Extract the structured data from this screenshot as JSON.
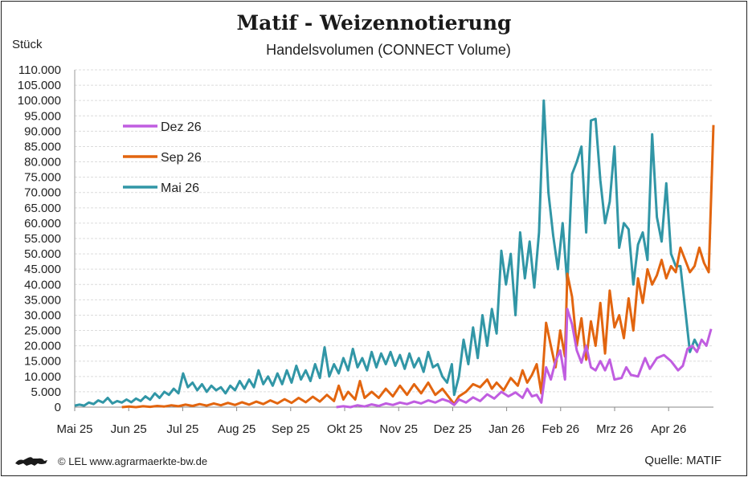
{
  "chart_data": {
    "type": "line",
    "title": "Matif - Weizennotierung",
    "subtitle": "Handelsvolumen (CONNECT Volume)",
    "ylabel": "Stück",
    "ylim": [
      0,
      110000
    ],
    "yticks": [
      0,
      5000,
      10000,
      15000,
      20000,
      25000,
      30000,
      35000,
      40000,
      45000,
      50000,
      55000,
      60000,
      65000,
      70000,
      75000,
      80000,
      85000,
      90000,
      95000,
      100000,
      105000,
      110000
    ],
    "ytick_labels": [
      "0",
      "5.000",
      "10.000",
      "15.000",
      "20.000",
      "25.000",
      "30.000",
      "35.000",
      "40.000",
      "45.000",
      "50.000",
      "55.000",
      "60.000",
      "65.000",
      "70.000",
      "75.000",
      "80.000",
      "85.000",
      "90.000",
      "95.000",
      "100.000",
      "105.000",
      "110.000"
    ],
    "xtick_labels": [
      "Mai 25",
      "Jun 25",
      "Jul 25",
      "Aug 25",
      "Sep 25",
      "Okt 25",
      "Nov 25",
      "Dez 25",
      "Jan 26",
      "Feb 26",
      "Mrz 26",
      "Apr 26"
    ],
    "xtick_months": [
      0,
      1,
      2,
      3,
      4,
      5,
      6,
      7,
      8,
      9,
      10,
      11
    ],
    "xlim_months": [
      0,
      12.05
    ],
    "grid": true,
    "legend_position": "top-left",
    "series": [
      {
        "name": "Dez 26",
        "color": "#c05de0",
        "points": [
          [
            5.55,
            0
          ],
          [
            5.7,
            300
          ],
          [
            5.85,
            0
          ],
          [
            6.0,
            600
          ],
          [
            6.15,
            200
          ],
          [
            6.3,
            900
          ],
          [
            6.45,
            400
          ],
          [
            6.6,
            1200
          ],
          [
            6.75,
            700
          ],
          [
            6.9,
            1500
          ],
          [
            7.05,
            1000
          ],
          [
            7.2,
            1800
          ],
          [
            7.35,
            1200
          ],
          [
            7.5,
            2200
          ],
          [
            7.65,
            1500
          ],
          [
            7.8,
            2600
          ],
          [
            7.95,
            1800
          ],
          [
            8.05,
            700
          ],
          [
            8.15,
            2500
          ],
          [
            8.3,
            1500
          ],
          [
            8.45,
            3200
          ],
          [
            8.6,
            2000
          ],
          [
            8.75,
            4200
          ],
          [
            8.9,
            2800
          ],
          [
            9.05,
            5000
          ],
          [
            9.2,
            3500
          ],
          [
            9.35,
            4800
          ],
          [
            9.5,
            3000
          ],
          [
            9.6,
            6000
          ],
          [
            9.7,
            3500
          ],
          [
            9.8,
            4000
          ],
          [
            9.9,
            1500
          ],
          [
            10.0,
            13000
          ],
          [
            10.1,
            9000
          ],
          [
            10.2,
            15000
          ],
          [
            10.3,
            18500
          ],
          [
            10.4,
            9000
          ],
          [
            10.45,
            32000
          ],
          [
            10.55,
            27000
          ],
          [
            10.65,
            18500
          ],
          [
            10.75,
            14500
          ],
          [
            10.85,
            20000
          ],
          [
            10.95,
            13000
          ],
          [
            11.05,
            12000
          ],
          [
            11.15,
            15000
          ],
          [
            11.25,
            12000
          ],
          [
            11.35,
            15500
          ],
          [
            11.45,
            9000
          ],
          [
            11.6,
            9500
          ],
          [
            11.7,
            13000
          ],
          [
            11.8,
            10500
          ],
          [
            11.95,
            10000
          ],
          [
            12.1,
            16000
          ],
          [
            12.2,
            12500
          ],
          [
            12.35,
            16000
          ],
          [
            12.5,
            17000
          ],
          [
            12.65,
            15000
          ],
          [
            12.8,
            12000
          ],
          [
            12.9,
            13500
          ],
          [
            13.0,
            19000
          ],
          [
            13.1,
            20000
          ],
          [
            13.2,
            18000
          ],
          [
            13.3,
            22000
          ],
          [
            13.4,
            20000
          ],
          [
            13.5,
            25500
          ]
        ]
      },
      {
        "name": "Sep 26",
        "color": "#e2650f",
        "points": [
          [
            1.0,
            0
          ],
          [
            1.15,
            200
          ],
          [
            1.3,
            0
          ],
          [
            1.45,
            300
          ],
          [
            1.6,
            100
          ],
          [
            1.75,
            400
          ],
          [
            1.9,
            200
          ],
          [
            2.05,
            600
          ],
          [
            2.2,
            300
          ],
          [
            2.35,
            800
          ],
          [
            2.5,
            400
          ],
          [
            2.65,
            1000
          ],
          [
            2.8,
            500
          ],
          [
            2.95,
            1200
          ],
          [
            3.1,
            600
          ],
          [
            3.25,
            1400
          ],
          [
            3.4,
            700
          ],
          [
            3.55,
            1600
          ],
          [
            3.7,
            800
          ],
          [
            3.85,
            1800
          ],
          [
            4.0,
            1000
          ],
          [
            4.15,
            2200
          ],
          [
            4.3,
            1200
          ],
          [
            4.45,
            2600
          ],
          [
            4.6,
            1400
          ],
          [
            4.75,
            3000
          ],
          [
            4.9,
            1600
          ],
          [
            5.05,
            3400
          ],
          [
            5.2,
            1800
          ],
          [
            5.35,
            4000
          ],
          [
            5.5,
            2000
          ],
          [
            5.6,
            7000
          ],
          [
            5.7,
            2500
          ],
          [
            5.8,
            5000
          ],
          [
            5.95,
            2500
          ],
          [
            6.05,
            8500
          ],
          [
            6.15,
            3000
          ],
          [
            6.3,
            5000
          ],
          [
            6.45,
            3000
          ],
          [
            6.6,
            6000
          ],
          [
            6.75,
            3500
          ],
          [
            6.9,
            7000
          ],
          [
            7.05,
            4000
          ],
          [
            7.2,
            7500
          ],
          [
            7.35,
            4500
          ],
          [
            7.5,
            8000
          ],
          [
            7.65,
            4000
          ],
          [
            7.8,
            6000
          ],
          [
            7.95,
            3000
          ],
          [
            8.05,
            1000
          ],
          [
            8.15,
            3500
          ],
          [
            8.3,
            5000
          ],
          [
            8.45,
            7500
          ],
          [
            8.6,
            6500
          ],
          [
            8.75,
            9000
          ],
          [
            8.85,
            6000
          ],
          [
            8.95,
            8000
          ],
          [
            9.1,
            5500
          ],
          [
            9.25,
            9500
          ],
          [
            9.4,
            7000
          ],
          [
            9.5,
            12000
          ],
          [
            9.6,
            8000
          ],
          [
            9.7,
            10500
          ],
          [
            9.8,
            14000
          ],
          [
            9.9,
            4500
          ],
          [
            10.0,
            27500
          ],
          [
            10.1,
            20000
          ],
          [
            10.2,
            13000
          ],
          [
            10.3,
            25000
          ],
          [
            10.4,
            16500
          ],
          [
            10.45,
            43500
          ],
          [
            10.55,
            36000
          ],
          [
            10.65,
            20000
          ],
          [
            10.75,
            29000
          ],
          [
            10.85,
            15500
          ],
          [
            10.95,
            28000
          ],
          [
            11.05,
            20000
          ],
          [
            11.15,
            34000
          ],
          [
            11.25,
            17500
          ],
          [
            11.35,
            38000
          ],
          [
            11.45,
            26000
          ],
          [
            11.55,
            30000
          ],
          [
            11.65,
            22500
          ],
          [
            11.75,
            35500
          ],
          [
            11.85,
            25000
          ],
          [
            11.95,
            42000
          ],
          [
            12.05,
            34000
          ],
          [
            12.15,
            45000
          ],
          [
            12.25,
            40000
          ],
          [
            12.35,
            43000
          ],
          [
            12.45,
            48000
          ],
          [
            12.55,
            42000
          ],
          [
            12.65,
            46000
          ],
          [
            12.75,
            44000
          ],
          [
            12.85,
            52000
          ],
          [
            12.95,
            48000
          ],
          [
            13.05,
            44000
          ],
          [
            13.15,
            46000
          ],
          [
            13.25,
            52000
          ],
          [
            13.35,
            47000
          ],
          [
            13.45,
            44000
          ],
          [
            13.55,
            92000
          ]
        ]
      },
      {
        "name": "Mai 26",
        "color": "#3196a6",
        "points": [
          [
            0.0,
            500
          ],
          [
            0.1,
            800
          ],
          [
            0.2,
            500
          ],
          [
            0.3,
            1500
          ],
          [
            0.4,
            1000
          ],
          [
            0.5,
            2200
          ],
          [
            0.6,
            1500
          ],
          [
            0.7,
            3000
          ],
          [
            0.8,
            1200
          ],
          [
            0.9,
            2000
          ],
          [
            1.0,
            1500
          ],
          [
            1.1,
            2500
          ],
          [
            1.2,
            1600
          ],
          [
            1.3,
            2800
          ],
          [
            1.4,
            2000
          ],
          [
            1.5,
            3500
          ],
          [
            1.6,
            2400
          ],
          [
            1.7,
            4500
          ],
          [
            1.8,
            3000
          ],
          [
            1.9,
            5000
          ],
          [
            2.0,
            4000
          ],
          [
            2.1,
            6000
          ],
          [
            2.2,
            4500
          ],
          [
            2.3,
            11000
          ],
          [
            2.4,
            6500
          ],
          [
            2.5,
            8000
          ],
          [
            2.6,
            5500
          ],
          [
            2.7,
            7500
          ],
          [
            2.8,
            5000
          ],
          [
            2.9,
            7000
          ],
          [
            3.0,
            5500
          ],
          [
            3.1,
            6500
          ],
          [
            3.2,
            4500
          ],
          [
            3.3,
            7000
          ],
          [
            3.4,
            5500
          ],
          [
            3.5,
            8500
          ],
          [
            3.6,
            6000
          ],
          [
            3.7,
            9000
          ],
          [
            3.8,
            6500
          ],
          [
            3.9,
            12000
          ],
          [
            4.0,
            7500
          ],
          [
            4.1,
            10000
          ],
          [
            4.2,
            7000
          ],
          [
            4.3,
            11000
          ],
          [
            4.4,
            7500
          ],
          [
            4.5,
            12000
          ],
          [
            4.6,
            8000
          ],
          [
            4.7,
            13500
          ],
          [
            4.8,
            9000
          ],
          [
            4.9,
            12000
          ],
          [
            5.0,
            8500
          ],
          [
            5.1,
            14000
          ],
          [
            5.2,
            9500
          ],
          [
            5.3,
            19500
          ],
          [
            5.4,
            10000
          ],
          [
            5.5,
            14000
          ],
          [
            5.6,
            11000
          ],
          [
            5.7,
            16000
          ],
          [
            5.8,
            12000
          ],
          [
            5.9,
            19000
          ],
          [
            6.0,
            13000
          ],
          [
            6.1,
            16000
          ],
          [
            6.2,
            12000
          ],
          [
            6.3,
            18000
          ],
          [
            6.4,
            13000
          ],
          [
            6.5,
            17500
          ],
          [
            6.6,
            14000
          ],
          [
            6.7,
            18000
          ],
          [
            6.8,
            13500
          ],
          [
            6.9,
            17000
          ],
          [
            7.0,
            12500
          ],
          [
            7.1,
            17500
          ],
          [
            7.2,
            13000
          ],
          [
            7.3,
            16000
          ],
          [
            7.4,
            11500
          ],
          [
            7.5,
            18000
          ],
          [
            7.6,
            13000
          ],
          [
            7.7,
            14000
          ],
          [
            7.8,
            10000
          ],
          [
            7.9,
            8000
          ],
          [
            8.0,
            14000
          ],
          [
            8.05,
            4000
          ],
          [
            8.15,
            10000
          ],
          [
            8.25,
            22000
          ],
          [
            8.35,
            14000
          ],
          [
            8.45,
            26000
          ],
          [
            8.55,
            16000
          ],
          [
            8.65,
            30000
          ],
          [
            8.75,
            20000
          ],
          [
            8.85,
            32000
          ],
          [
            8.95,
            24000
          ],
          [
            9.05,
            51000
          ],
          [
            9.15,
            40000
          ],
          [
            9.25,
            50000
          ],
          [
            9.35,
            30000
          ],
          [
            9.45,
            57000
          ],
          [
            9.55,
            42000
          ],
          [
            9.65,
            54000
          ],
          [
            9.75,
            39000
          ],
          [
            9.85,
            57000
          ],
          [
            9.95,
            100000
          ],
          [
            10.05,
            70000
          ],
          [
            10.15,
            56000
          ],
          [
            10.25,
            45000
          ],
          [
            10.35,
            60000
          ],
          [
            10.45,
            40000
          ],
          [
            10.55,
            76000
          ],
          [
            10.65,
            80000
          ],
          [
            10.75,
            85000
          ],
          [
            10.85,
            57000
          ],
          [
            10.95,
            93500
          ],
          [
            11.05,
            94000
          ],
          [
            11.15,
            74000
          ],
          [
            11.25,
            60000
          ],
          [
            11.35,
            67000
          ],
          [
            11.45,
            85000
          ],
          [
            11.55,
            52000
          ],
          [
            11.65,
            60000
          ],
          [
            11.75,
            58000
          ],
          [
            11.85,
            40000
          ],
          [
            11.95,
            53000
          ],
          [
            12.05,
            57000
          ],
          [
            12.15,
            48000
          ],
          [
            12.25,
            89000
          ],
          [
            12.35,
            62000
          ],
          [
            12.45,
            54000
          ],
          [
            12.55,
            73000
          ],
          [
            12.65,
            50000
          ],
          [
            12.75,
            46000
          ],
          [
            12.85,
            46000
          ],
          [
            12.95,
            32000
          ],
          [
            13.05,
            18000
          ],
          [
            13.15,
            22000
          ],
          [
            13.25,
            19000
          ]
        ]
      }
    ]
  },
  "footer": {
    "copyright": "© LEL www.agrarmaerkte-bw.de",
    "source": "Quelle: MATIF"
  }
}
